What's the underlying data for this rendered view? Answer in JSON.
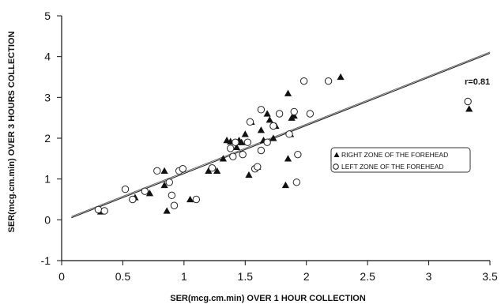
{
  "chart_data": {
    "type": "scatter",
    "xlabel": "SER(mcg.cm.min) OVER 1 HOUR COLLECTION",
    "ylabel": "SER(mcg.cm.min) OVER 3 HOURS COLLECTION",
    "xlim": [
      0,
      3.5
    ],
    "ylim": [
      -1,
      5
    ],
    "x_ticks": [
      "0",
      "0.5",
      "1",
      "1.5",
      "2",
      "2.5",
      "3",
      "3.5"
    ],
    "y_ticks": [
      "-1",
      "0",
      "1",
      "2",
      "3",
      "4",
      "5"
    ],
    "x_tick_values": [
      0,
      0.5,
      1,
      1.5,
      2,
      2.5,
      3,
      3.5
    ],
    "y_tick_values": [
      -1,
      0,
      1,
      2,
      3,
      4,
      5
    ],
    "grid": false,
    "legend_position": "right",
    "annotation": "r=0.81",
    "regression_line": {
      "x": [
        0.08,
        3.5
      ],
      "y": [
        0.05,
        4.08
      ]
    },
    "series": [
      {
        "name": "RIGHT ZONE OF THE FOREHEAD",
        "marker": "filled-triangle",
        "points": [
          [
            0.32,
            0.2
          ],
          [
            0.6,
            0.55
          ],
          [
            0.72,
            0.65
          ],
          [
            0.84,
            0.85
          ],
          [
            0.84,
            1.2
          ],
          [
            0.86,
            0.22
          ],
          [
            1.05,
            0.5
          ],
          [
            1.2,
            1.2
          ],
          [
            1.27,
            1.2
          ],
          [
            1.32,
            1.5
          ],
          [
            1.35,
            1.95
          ],
          [
            1.38,
            1.92
          ],
          [
            1.43,
            1.78
          ],
          [
            1.45,
            1.95
          ],
          [
            1.47,
            1.9
          ],
          [
            1.5,
            2.1
          ],
          [
            1.53,
            1.1
          ],
          [
            1.55,
            2.4
          ],
          [
            1.6,
            1.3
          ],
          [
            1.63,
            2.2
          ],
          [
            1.65,
            1.95
          ],
          [
            1.68,
            2.6
          ],
          [
            1.7,
            2.45
          ],
          [
            1.73,
            2.0
          ],
          [
            1.75,
            2.3
          ],
          [
            1.83,
            0.85
          ],
          [
            1.85,
            1.5
          ],
          [
            1.85,
            3.1
          ],
          [
            1.87,
            2.1
          ],
          [
            1.88,
            2.5
          ],
          [
            1.9,
            2.55
          ],
          [
            2.28,
            3.5
          ],
          [
            3.33,
            2.72
          ]
        ]
      },
      {
        "name": "LEFT ZONE OF THE FOREHEAD",
        "marker": "open-circle",
        "points": [
          [
            0.3,
            0.25
          ],
          [
            0.35,
            0.22
          ],
          [
            0.52,
            0.75
          ],
          [
            0.58,
            0.5
          ],
          [
            0.68,
            0.7
          ],
          [
            0.78,
            1.2
          ],
          [
            0.88,
            0.92
          ],
          [
            0.9,
            0.6
          ],
          [
            0.92,
            0.35
          ],
          [
            0.96,
            1.2
          ],
          [
            0.99,
            1.25
          ],
          [
            1.1,
            0.5
          ],
          [
            1.23,
            1.27
          ],
          [
            1.38,
            1.75
          ],
          [
            1.4,
            1.55
          ],
          [
            1.42,
            1.9
          ],
          [
            1.48,
            1.6
          ],
          [
            1.52,
            1.9
          ],
          [
            1.54,
            2.4
          ],
          [
            1.58,
            1.25
          ],
          [
            1.6,
            1.3
          ],
          [
            1.63,
            1.7
          ],
          [
            1.63,
            2.7
          ],
          [
            1.68,
            1.9
          ],
          [
            1.73,
            2.3
          ],
          [
            1.78,
            2.6
          ],
          [
            1.86,
            2.1
          ],
          [
            1.9,
            2.65
          ],
          [
            1.92,
            0.92
          ],
          [
            1.93,
            1.6
          ],
          [
            1.98,
            3.4
          ],
          [
            2.03,
            2.6
          ],
          [
            2.18,
            3.4
          ],
          [
            3.32,
            2.9
          ]
        ]
      }
    ]
  }
}
